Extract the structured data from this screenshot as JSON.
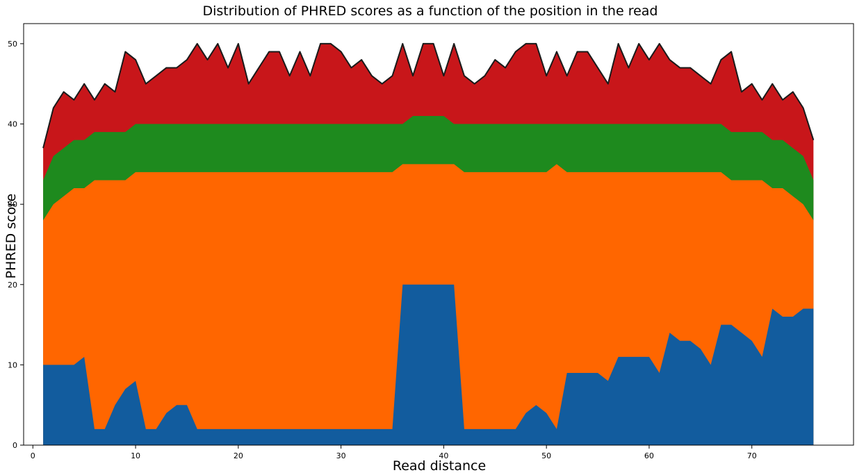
{
  "chart_data": {
    "type": "area",
    "title": "Distribution of PHRED scores as a function of the position in the read",
    "xlabel": "Read distance",
    "ylabel": "PHRED score",
    "xlim": [
      -0.9,
      79.9
    ],
    "ylim": [
      0,
      52.5
    ],
    "xticks": [
      0,
      10,
      20,
      30,
      40,
      50,
      60,
      70
    ],
    "yticks": [
      0,
      10,
      20,
      30,
      40,
      50
    ],
    "x": [
      1,
      2,
      3,
      4,
      5,
      6,
      7,
      8,
      9,
      10,
      11,
      12,
      13,
      14,
      15,
      16,
      17,
      18,
      19,
      20,
      21,
      22,
      23,
      24,
      25,
      26,
      27,
      28,
      29,
      30,
      31,
      32,
      33,
      34,
      35,
      36,
      37,
      38,
      39,
      40,
      41,
      42,
      43,
      44,
      45,
      46,
      47,
      48,
      49,
      50,
      51,
      52,
      53,
      54,
      55,
      56,
      57,
      58,
      59,
      60,
      61,
      62,
      63,
      64,
      65,
      66,
      67,
      68,
      69,
      70,
      71,
      72,
      73,
      74,
      75,
      76
    ],
    "stack_order_bottom_to_top": [
      "min",
      "q1",
      "q3",
      "max"
    ],
    "series": [
      {
        "key": "max",
        "color": "#c8161a",
        "outline": "#1a1a1a",
        "values": [
          37,
          42,
          44,
          43,
          45,
          43,
          45,
          44,
          49,
          48,
          45,
          46,
          47,
          47,
          48,
          50,
          48,
          50,
          47,
          50,
          45,
          47,
          49,
          49,
          46,
          49,
          46,
          50,
          50,
          49,
          47,
          48,
          46,
          45,
          46,
          50,
          46,
          50,
          50,
          46,
          50,
          46,
          45,
          46,
          48,
          47,
          49,
          50,
          50,
          46,
          49,
          46,
          49,
          49,
          47,
          45,
          50,
          47,
          50,
          48,
          50,
          48,
          47,
          47,
          46,
          45,
          48,
          49,
          44,
          45,
          43,
          45,
          43,
          44,
          42,
          38
        ]
      },
      {
        "key": "q3",
        "color": "#1e8a1e",
        "values": [
          33,
          36,
          37,
          38,
          38,
          39,
          39,
          39,
          39,
          40,
          40,
          40,
          40,
          40,
          40,
          40,
          40,
          40,
          40,
          40,
          40,
          40,
          40,
          40,
          40,
          40,
          40,
          40,
          40,
          40,
          40,
          40,
          40,
          40,
          40,
          40,
          41,
          41,
          41,
          41,
          40,
          40,
          40,
          40,
          40,
          40,
          40,
          40,
          40,
          40,
          40,
          40,
          40,
          40,
          40,
          40,
          40,
          40,
          40,
          40,
          40,
          40,
          40,
          40,
          40,
          40,
          40,
          39,
          39,
          39,
          39,
          38,
          38,
          37,
          36,
          33
        ]
      },
      {
        "key": "q1",
        "color": "#ff6600",
        "values": [
          28,
          30,
          31,
          32,
          32,
          33,
          33,
          33,
          33,
          34,
          34,
          34,
          34,
          34,
          34,
          34,
          34,
          34,
          34,
          34,
          34,
          34,
          34,
          34,
          34,
          34,
          34,
          34,
          34,
          34,
          34,
          34,
          34,
          34,
          34,
          35,
          35,
          35,
          35,
          35,
          35,
          34,
          34,
          34,
          34,
          34,
          34,
          34,
          34,
          34,
          35,
          34,
          34,
          34,
          34,
          34,
          34,
          34,
          34,
          34,
          34,
          34,
          34,
          34,
          34,
          34,
          34,
          33,
          33,
          33,
          33,
          32,
          32,
          31,
          30,
          28
        ]
      },
      {
        "key": "min",
        "color": "#125c9e",
        "values": [
          10,
          10,
          10,
          10,
          11,
          2,
          2,
          5,
          7,
          8,
          2,
          2,
          4,
          5,
          5,
          2,
          2,
          2,
          2,
          2,
          2,
          2,
          2,
          2,
          2,
          2,
          2,
          2,
          2,
          2,
          2,
          2,
          2,
          2,
          2,
          20,
          20,
          20,
          20,
          20,
          20,
          2,
          2,
          2,
          2,
          2,
          2,
          4,
          5,
          4,
          2,
          9,
          9,
          9,
          9,
          8,
          11,
          11,
          11,
          11,
          9,
          14,
          13,
          13,
          12,
          10,
          15,
          15,
          14,
          13,
          11,
          17,
          16,
          16,
          17,
          17
        ]
      }
    ]
  }
}
